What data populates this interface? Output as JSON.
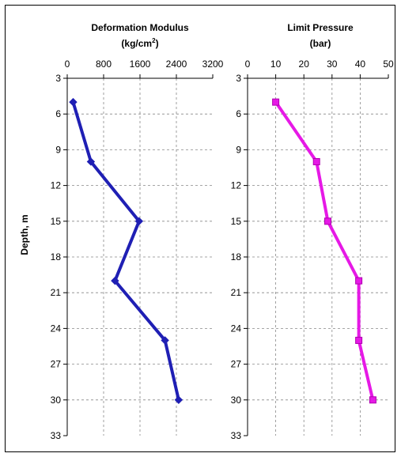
{
  "shared": {
    "ylabel": "Depth, m",
    "y_ticks": [
      3,
      6,
      9,
      12,
      15,
      18,
      21,
      24,
      27,
      30,
      33
    ],
    "ylim": [
      3,
      33
    ],
    "y_inverted": true,
    "grid": "dashed vertical and horizontal"
  },
  "chart_data": [
    {
      "type": "line",
      "title": "Deformation Modulus",
      "subtitle": "(kg/cm²)",
      "x_ticks": [
        0,
        800,
        1600,
        2400,
        3200
      ],
      "xlim": [
        0,
        3200
      ],
      "x_axis_position": "top",
      "series": [
        {
          "color": "#1f1fb4",
          "marker": "diamond",
          "points": [
            {
              "x": 130,
              "y": 5
            },
            {
              "x": 520,
              "y": 10
            },
            {
              "x": 1580,
              "y": 15
            },
            {
              "x": 1050,
              "y": 20
            },
            {
              "x": 2150,
              "y": 25
            },
            {
              "x": 2450,
              "y": 30
            }
          ]
        }
      ]
    },
    {
      "type": "line",
      "title": "Limit Pressure",
      "subtitle": "(bar)",
      "x_ticks": [
        0,
        10,
        20,
        30,
        40,
        50
      ],
      "xlim": [
        0,
        50
      ],
      "x_axis_position": "top",
      "series": [
        {
          "color": "#e619e6",
          "marker": "square",
          "points": [
            {
              "x": 10,
              "y": 5
            },
            {
              "x": 24.5,
              "y": 10
            },
            {
              "x": 28.5,
              "y": 15
            },
            {
              "x": 39.5,
              "y": 20
            },
            {
              "x": 39.5,
              "y": 25
            },
            {
              "x": 44.5,
              "y": 30
            }
          ]
        }
      ]
    }
  ]
}
